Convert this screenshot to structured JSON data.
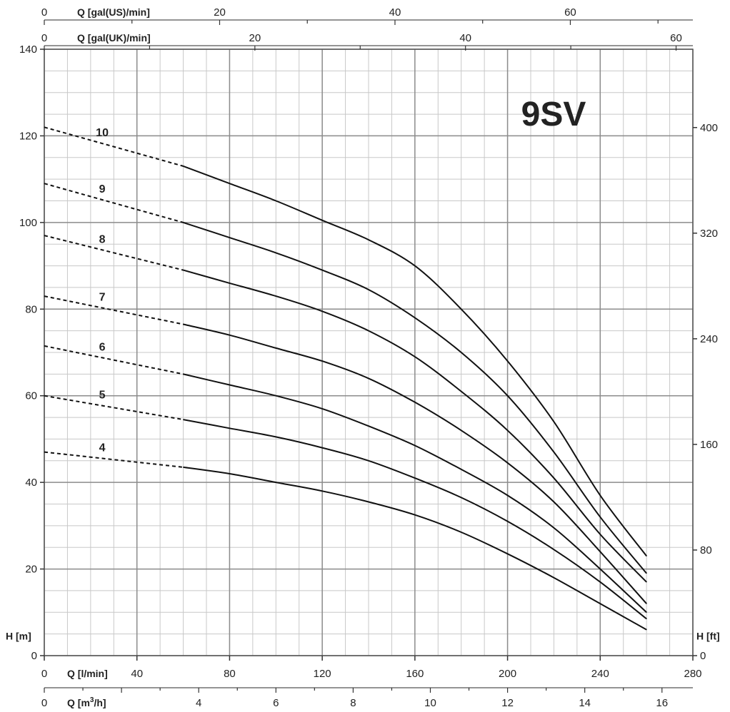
{
  "chart_data": {
    "type": "line",
    "title": "9SV",
    "xlabel": "Q [l/min]",
    "ylabel": "H [m]",
    "ylabel_right": "H [ft]",
    "xlim": [
      0,
      280
    ],
    "ylim": [
      0,
      140
    ],
    "grid": true,
    "x_ticks": [
      0,
      40,
      80,
      120,
      160,
      200,
      240,
      280
    ],
    "y_ticks": [
      0,
      20,
      40,
      60,
      80,
      100,
      120,
      140
    ],
    "axes_secondary": {
      "top_us": {
        "label": "Q [gal(US)/min]",
        "ticks": [
          0,
          20,
          40,
          60
        ],
        "lpm_per_unit": 3.785
      },
      "top_uk": {
        "label": "Q [gal(UK)/min]",
        "ticks": [
          0,
          20,
          40,
          60
        ],
        "lpm_per_unit": 4.546
      },
      "bottom_m3h": {
        "label": "Q [m3/h]",
        "ticks": [
          0,
          4,
          6,
          8,
          10,
          12,
          14,
          16
        ],
        "lpm_per_unit": 16.667
      },
      "right_ft": {
        "label": "H [ft]",
        "ticks": [
          0,
          80,
          160,
          240,
          320,
          400
        ],
        "m_per_unit": 0.3048
      }
    },
    "dashed_until_x": 60,
    "series": [
      {
        "name": "10",
        "x": [
          0,
          60,
          80,
          100,
          120,
          140,
          160,
          180,
          200,
          220,
          240,
          260
        ],
        "values": [
          122,
          113,
          109,
          105,
          100.5,
          96,
          90,
          80,
          68,
          54,
          37,
          23
        ]
      },
      {
        "name": "9",
        "x": [
          0,
          60,
          80,
          100,
          120,
          140,
          160,
          180,
          200,
          220,
          240,
          260
        ],
        "values": [
          109,
          100,
          96.5,
          93,
          89,
          84.5,
          78,
          70,
          60,
          47,
          32,
          19
        ]
      },
      {
        "name": "8",
        "x": [
          0,
          60,
          80,
          100,
          120,
          140,
          160,
          180,
          200,
          220,
          240,
          260
        ],
        "values": [
          97,
          89,
          86,
          83,
          79.5,
          75,
          69,
          61,
          52,
          41,
          28,
          17
        ]
      },
      {
        "name": "7",
        "x": [
          0,
          60,
          80,
          100,
          120,
          140,
          160,
          180,
          200,
          220,
          240,
          260
        ],
        "values": [
          83,
          76.5,
          74,
          71,
          68,
          64,
          58.5,
          52,
          44.5,
          35.5,
          24,
          12
        ]
      },
      {
        "name": "6",
        "x": [
          0,
          60,
          80,
          100,
          120,
          140,
          160,
          180,
          200,
          220,
          240,
          260
        ],
        "values": [
          71.5,
          65,
          62.5,
          60,
          57,
          53,
          48.5,
          43,
          37,
          29.5,
          20,
          10
        ]
      },
      {
        "name": "5",
        "x": [
          0,
          60,
          80,
          100,
          120,
          140,
          160,
          180,
          200,
          220,
          240,
          260
        ],
        "values": [
          60,
          54.5,
          52.5,
          50.5,
          48,
          45,
          41,
          36.5,
          31,
          24.5,
          17,
          8.5
        ]
      },
      {
        "name": "4",
        "x": [
          0,
          60,
          80,
          100,
          120,
          140,
          160,
          180,
          200,
          220,
          240,
          260
        ],
        "values": [
          47,
          43.5,
          42,
          40,
          38,
          35.5,
          32.5,
          28.5,
          23.5,
          18,
          12,
          6
        ]
      }
    ]
  }
}
